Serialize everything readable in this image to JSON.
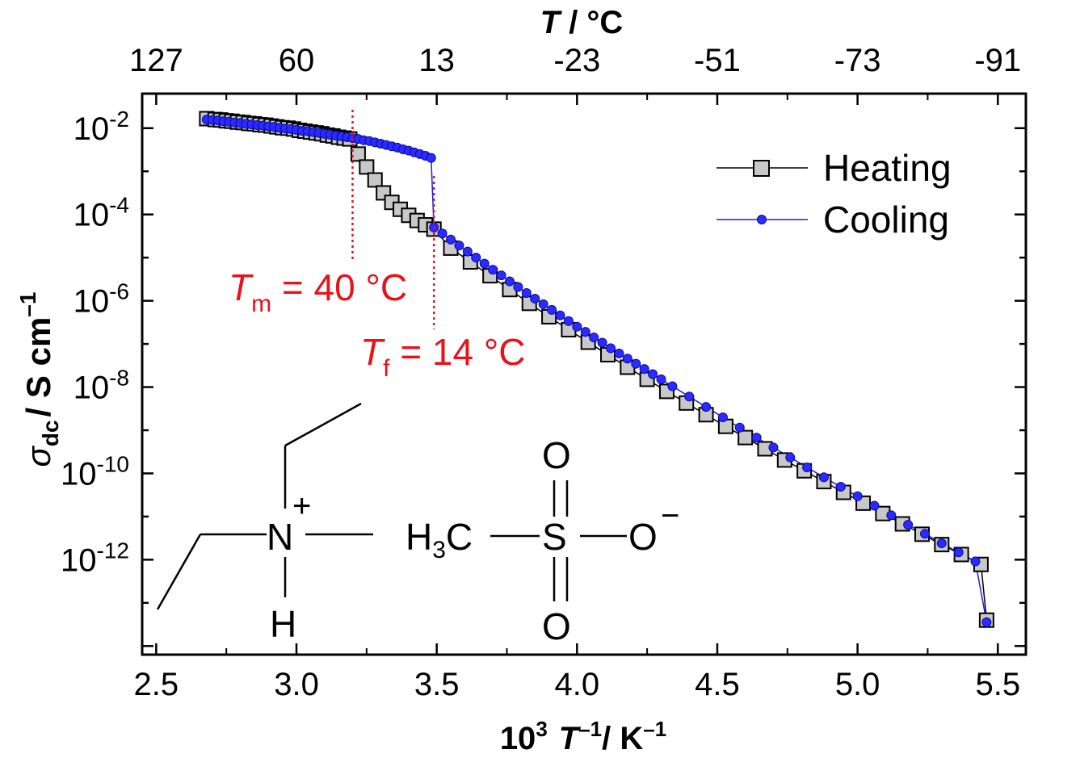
{
  "chart_data": {
    "type": "scatter",
    "xlabel": {
      "base": "10",
      "exp1": "3",
      "var": "T",
      "exp2": "–1",
      "unit": "/ K",
      "exp3": "–1"
    },
    "ylabel": {
      "sym": "σ",
      "sub": "dc",
      "unit": "/ S cm",
      "exp": "–1"
    },
    "top_xlabel": {
      "var": "T",
      "unit": " / °C"
    },
    "xlim": [
      2.45,
      5.6
    ],
    "ylim_log10": [
      -14.2,
      -1.2
    ],
    "x_ticks": [
      2.5,
      3.0,
      3.5,
      4.0,
      4.5,
      5.0,
      5.5
    ],
    "x_tick_labels": [
      "2.5",
      "3.0",
      "3.5",
      "4.0",
      "4.5",
      "5.0",
      "5.5"
    ],
    "y_ticks_log10": [
      -2,
      -4,
      -6,
      -8,
      -10,
      -12
    ],
    "y_tick_labels": [
      {
        "base": "10",
        "exp": "-2"
      },
      {
        "base": "10",
        "exp": "-4"
      },
      {
        "base": "10",
        "exp": "-6"
      },
      {
        "base": "10",
        "exp": "-8"
      },
      {
        "base": "10",
        "exp": "-10"
      },
      {
        "base": "10",
        "exp": "-12"
      }
    ],
    "top_ticks": [
      {
        "x": 2.5,
        "label": "127"
      },
      {
        "x": 3.0,
        "label": "60"
      },
      {
        "x": 3.5,
        "label": "13"
      },
      {
        "x": 4.0,
        "label": "-23"
      },
      {
        "x": 4.5,
        "label": "-51"
      },
      {
        "x": 5.0,
        "label": "-73"
      },
      {
        "x": 5.5,
        "label": "-91"
      }
    ],
    "series": [
      {
        "name": "Heating",
        "color": "#000000",
        "fill": "#c8c8c8",
        "marker": "square",
        "points": [
          [
            2.68,
            -1.78
          ],
          [
            2.71,
            -1.8
          ],
          [
            2.73,
            -1.81
          ],
          [
            2.75,
            -1.83
          ],
          [
            2.77,
            -1.84
          ],
          [
            2.79,
            -1.86
          ],
          [
            2.81,
            -1.87
          ],
          [
            2.83,
            -1.89
          ],
          [
            2.85,
            -1.9
          ],
          [
            2.87,
            -1.92
          ],
          [
            2.89,
            -1.93
          ],
          [
            2.91,
            -1.95
          ],
          [
            2.93,
            -1.97
          ],
          [
            2.95,
            -1.99
          ],
          [
            2.97,
            -2.0
          ],
          [
            2.99,
            -2.02
          ],
          [
            3.01,
            -2.05
          ],
          [
            3.03,
            -2.07
          ],
          [
            3.05,
            -2.09
          ],
          [
            3.07,
            -2.11
          ],
          [
            3.09,
            -2.13
          ],
          [
            3.11,
            -2.16
          ],
          [
            3.13,
            -2.18
          ],
          [
            3.15,
            -2.21
          ],
          [
            3.17,
            -2.23
          ],
          [
            3.19,
            -2.25
          ],
          [
            3.22,
            -2.6
          ],
          [
            3.25,
            -2.9
          ],
          [
            3.28,
            -3.2
          ],
          [
            3.31,
            -3.5
          ],
          [
            3.34,
            -3.72
          ],
          [
            3.37,
            -3.88
          ],
          [
            3.4,
            -4.02
          ],
          [
            3.43,
            -4.14
          ],
          [
            3.46,
            -4.24
          ],
          [
            3.49,
            -4.34
          ],
          [
            3.55,
            -4.78
          ],
          [
            3.62,
            -5.1
          ],
          [
            3.69,
            -5.42
          ],
          [
            3.76,
            -5.74
          ],
          [
            3.83,
            -6.06
          ],
          [
            3.9,
            -6.37
          ],
          [
            3.97,
            -6.67
          ],
          [
            4.04,
            -6.96
          ],
          [
            4.11,
            -7.25
          ],
          [
            4.18,
            -7.54
          ],
          [
            4.25,
            -7.82
          ],
          [
            4.32,
            -8.1
          ],
          [
            4.39,
            -8.37
          ],
          [
            4.46,
            -8.64
          ],
          [
            4.53,
            -8.91
          ],
          [
            4.6,
            -9.17
          ],
          [
            4.67,
            -9.43
          ],
          [
            4.74,
            -9.69
          ],
          [
            4.81,
            -9.94
          ],
          [
            4.88,
            -10.19
          ],
          [
            4.95,
            -10.44
          ],
          [
            5.02,
            -10.69
          ],
          [
            5.09,
            -10.93
          ],
          [
            5.16,
            -11.17
          ],
          [
            5.23,
            -11.41
          ],
          [
            5.3,
            -11.65
          ],
          [
            5.37,
            -11.88
          ],
          [
            5.44,
            -12.11
          ],
          [
            5.46,
            -13.4
          ]
        ]
      },
      {
        "name": "Cooling",
        "color": "#1f1fcf",
        "fill": "#2b2bff",
        "marker": "circle",
        "points": [
          [
            2.68,
            -1.8
          ],
          [
            2.7,
            -1.81
          ],
          [
            2.72,
            -1.82
          ],
          [
            2.74,
            -1.84
          ],
          [
            2.76,
            -1.85
          ],
          [
            2.78,
            -1.87
          ],
          [
            2.8,
            -1.88
          ],
          [
            2.82,
            -1.9
          ],
          [
            2.84,
            -1.91
          ],
          [
            2.86,
            -1.93
          ],
          [
            2.88,
            -1.94
          ],
          [
            2.9,
            -1.96
          ],
          [
            2.92,
            -1.97
          ],
          [
            2.94,
            -1.99
          ],
          [
            2.96,
            -2.01
          ],
          [
            2.98,
            -2.02
          ],
          [
            3.0,
            -2.04
          ],
          [
            3.02,
            -2.06
          ],
          [
            3.04,
            -2.07
          ],
          [
            3.06,
            -2.09
          ],
          [
            3.08,
            -2.11
          ],
          [
            3.1,
            -2.13
          ],
          [
            3.12,
            -2.15
          ],
          [
            3.14,
            -2.17
          ],
          [
            3.16,
            -2.19
          ],
          [
            3.18,
            -2.21
          ],
          [
            3.2,
            -2.23
          ],
          [
            3.22,
            -2.25
          ],
          [
            3.24,
            -2.28
          ],
          [
            3.26,
            -2.3
          ],
          [
            3.28,
            -2.33
          ],
          [
            3.3,
            -2.36
          ],
          [
            3.32,
            -2.39
          ],
          [
            3.34,
            -2.42
          ],
          [
            3.36,
            -2.45
          ],
          [
            3.38,
            -2.49
          ],
          [
            3.4,
            -2.52
          ],
          [
            3.42,
            -2.56
          ],
          [
            3.44,
            -2.6
          ],
          [
            3.46,
            -2.64
          ],
          [
            3.48,
            -2.69
          ],
          [
            3.49,
            -4.3
          ],
          [
            3.52,
            -4.44
          ],
          [
            3.55,
            -4.58
          ],
          [
            3.58,
            -4.72
          ],
          [
            3.61,
            -4.86
          ],
          [
            3.64,
            -5.0
          ],
          [
            3.67,
            -5.14
          ],
          [
            3.7,
            -5.28
          ],
          [
            3.73,
            -5.41
          ],
          [
            3.76,
            -5.55
          ],
          [
            3.79,
            -5.68
          ],
          [
            3.82,
            -5.82
          ],
          [
            3.85,
            -5.95
          ],
          [
            3.88,
            -6.08
          ],
          [
            3.91,
            -6.21
          ],
          [
            3.94,
            -6.34
          ],
          [
            3.97,
            -6.47
          ],
          [
            4.0,
            -6.6
          ],
          [
            4.03,
            -6.72
          ],
          [
            4.06,
            -6.85
          ],
          [
            4.09,
            -6.97
          ],
          [
            4.12,
            -7.1
          ],
          [
            4.15,
            -7.22
          ],
          [
            4.18,
            -7.34
          ],
          [
            4.21,
            -7.46
          ],
          [
            4.24,
            -7.58
          ],
          [
            4.27,
            -7.7
          ],
          [
            4.3,
            -7.82
          ],
          [
            4.34,
            -7.98
          ],
          [
            4.4,
            -8.22
          ],
          [
            4.46,
            -8.46
          ],
          [
            4.52,
            -8.7
          ],
          [
            4.58,
            -8.94
          ],
          [
            4.64,
            -9.17
          ],
          [
            4.7,
            -9.4
          ],
          [
            4.76,
            -9.63
          ],
          [
            4.82,
            -9.86
          ],
          [
            4.88,
            -10.09
          ],
          [
            4.94,
            -10.31
          ],
          [
            5.0,
            -10.53
          ],
          [
            5.06,
            -10.75
          ],
          [
            5.12,
            -10.97
          ],
          [
            5.18,
            -11.19
          ],
          [
            5.24,
            -11.4
          ],
          [
            5.3,
            -11.62
          ],
          [
            5.36,
            -11.83
          ],
          [
            5.42,
            -12.04
          ],
          [
            5.46,
            -13.45
          ]
        ]
      }
    ],
    "annotations": {
      "tm": {
        "sym": "T",
        "sub": "m",
        "rest": " = 40 °C",
        "x": 3.2
      },
      "tf": {
        "sym": "T",
        "sub": "f",
        "rest": " = 14 °C",
        "x": 3.49
      }
    },
    "legend": {
      "position": "top-right",
      "items": [
        "Heating",
        "Cooling"
      ]
    }
  },
  "structure": {
    "n_plus": "+",
    "n_atom": "N",
    "h_atom": "H",
    "h3c": {
      "h": "H",
      "sub": "3",
      "c": "C"
    },
    "s_atom": "S",
    "o_top": "O",
    "o_bottom": "O",
    "o_right": "O",
    "o_minus": "−"
  }
}
